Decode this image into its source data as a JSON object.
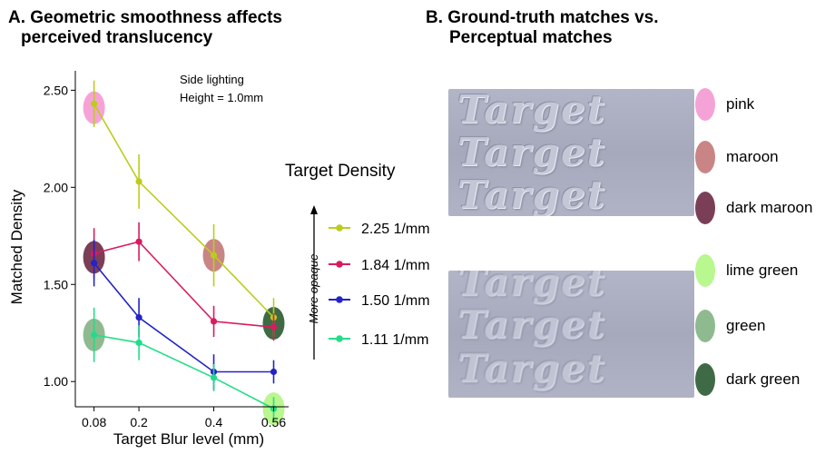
{
  "panel_a": {
    "title_line1": "A. Geometric smoothness affects",
    "title_line2": "perceived translucency",
    "annotation_line1": "Side lighting",
    "annotation_line2": "Height = 1.0mm"
  },
  "panel_b": {
    "title_line1": "B. Ground-truth matches vs.",
    "title_line2": "Perceptual matches",
    "tile_word": "Target",
    "swatches": [
      {
        "label": "pink",
        "color": "#f5a3d7"
      },
      {
        "label": "maroon",
        "color": "#c98585"
      },
      {
        "label": "dark maroon",
        "color": "#7a3f57"
      },
      {
        "label": "lime green",
        "color": "#b9f78f"
      },
      {
        "label": "green",
        "color": "#8fba90"
      },
      {
        "label": "dark green",
        "color": "#3e6b45"
      }
    ]
  },
  "legend": {
    "title": "Target Density",
    "side_label": "More opaque"
  },
  "chart_data": {
    "type": "line",
    "xlabel": "Target Blur level (mm)",
    "ylabel": "Matched Density",
    "x": [
      0.08,
      0.2,
      0.4,
      0.56
    ],
    "x_ticks": [
      "0.08",
      "0.2",
      "0.4",
      "0.56"
    ],
    "xlim": [
      0.03,
      0.6
    ],
    "y_ticks": [
      "1.00",
      "1.50",
      "2.00",
      "2.50"
    ],
    "ylim": [
      0.87,
      2.6
    ],
    "grid": false,
    "series": [
      {
        "name": "2.25 1/mm",
        "color": "#bccc1c",
        "values": [
          2.43,
          2.03,
          1.65,
          1.33
        ],
        "err": [
          0.12,
          0.14,
          0.16,
          0.1
        ]
      },
      {
        "name": "1.84 1/mm",
        "color": "#d81b60",
        "values": [
          1.66,
          1.72,
          1.31,
          1.28
        ],
        "err": [
          0.13,
          0.1,
          0.08,
          0.07
        ]
      },
      {
        "name": "1.50 1/mm",
        "color": "#2323c8",
        "values": [
          1.61,
          1.33,
          1.05,
          1.05
        ],
        "err": [
          0.12,
          0.1,
          0.09,
          0.06
        ]
      },
      {
        "name": "1.11 1/mm",
        "color": "#22dd88",
        "values": [
          1.24,
          1.2,
          1.02,
          0.86
        ],
        "err": [
          0.14,
          0.09,
          0.07,
          0.06
        ]
      }
    ],
    "ellipses": [
      {
        "x": 0.08,
        "y": 2.41,
        "color": "#f5a3d7"
      },
      {
        "x": 0.08,
        "y": 1.64,
        "color": "#7a3f57"
      },
      {
        "x": 0.08,
        "y": 1.24,
        "color": "#8fba90"
      },
      {
        "x": 0.4,
        "y": 1.65,
        "color": "#c98585"
      },
      {
        "x": 0.56,
        "y": 1.3,
        "color": "#3e6b45"
      },
      {
        "x": 0.56,
        "y": 0.86,
        "color": "#b9f78f"
      }
    ]
  }
}
